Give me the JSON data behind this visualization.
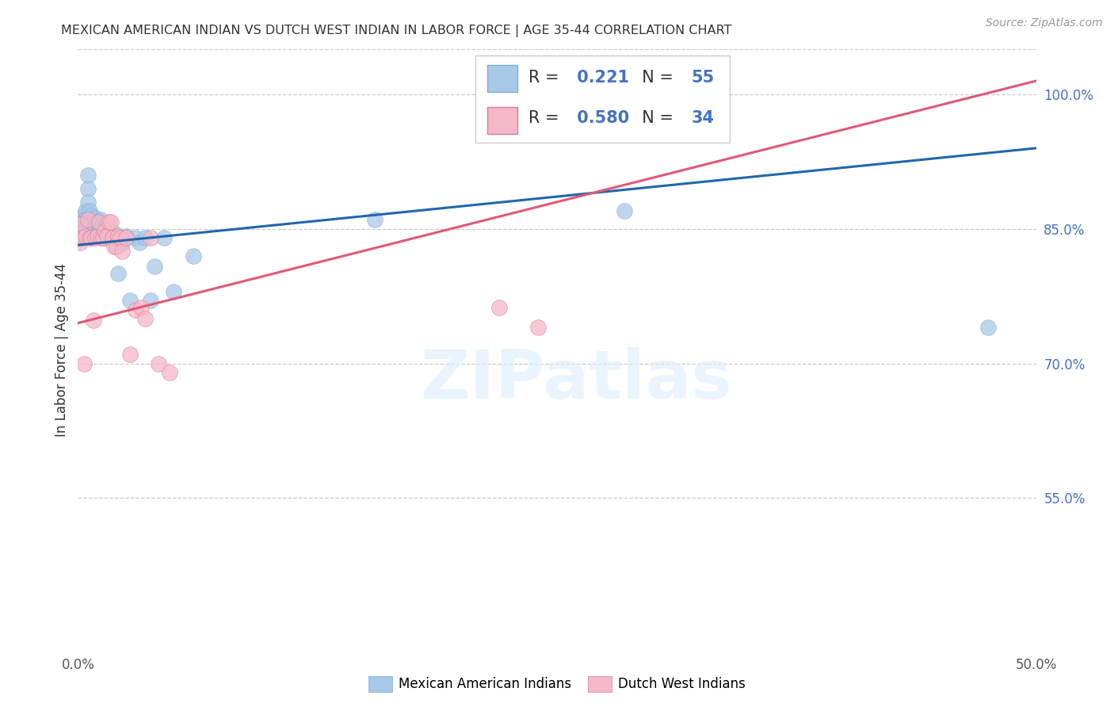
{
  "title": "MEXICAN AMERICAN INDIAN VS DUTCH WEST INDIAN IN LABOR FORCE | AGE 35-44 CORRELATION CHART",
  "source": "Source: ZipAtlas.com",
  "ylabel": "In Labor Force | Age 35-44",
  "xlim": [
    0.0,
    0.5
  ],
  "ylim": [
    0.38,
    1.05
  ],
  "xticklabels": [
    "0.0%",
    "",
    "",
    "",
    "",
    "",
    "",
    "",
    "",
    "",
    "50.0%"
  ],
  "xticks": [
    0.0,
    0.05,
    0.1,
    0.15,
    0.2,
    0.25,
    0.3,
    0.35,
    0.4,
    0.45,
    0.5
  ],
  "yticks_right": [
    1.0,
    0.85,
    0.7,
    0.55
  ],
  "ytick_labels_right": [
    "100.0%",
    "85.0%",
    "70.0%",
    "55.0%"
  ],
  "blue_color": "#a8c8e8",
  "blue_color_edge": "#7bafd4",
  "blue_line_color": "#2166ac",
  "pink_color": "#f4b8c8",
  "pink_color_edge": "#e07898",
  "pink_line_color": "#e05878",
  "legend_R_blue": "0.221",
  "legend_N_blue": "55",
  "legend_R_pink": "0.580",
  "legend_N_pink": "34",
  "watermark_text": "ZIPatlas",
  "blue_scatter_x": [
    0.001,
    0.001,
    0.002,
    0.002,
    0.002,
    0.003,
    0.003,
    0.003,
    0.003,
    0.004,
    0.004,
    0.004,
    0.005,
    0.005,
    0.005,
    0.006,
    0.006,
    0.006,
    0.007,
    0.007,
    0.007,
    0.008,
    0.008,
    0.009,
    0.009,
    0.01,
    0.01,
    0.011,
    0.011,
    0.012,
    0.012,
    0.013,
    0.014,
    0.015,
    0.016,
    0.017,
    0.018,
    0.019,
    0.02,
    0.021,
    0.022,
    0.023,
    0.025,
    0.027,
    0.03,
    0.032,
    0.035,
    0.038,
    0.04,
    0.045,
    0.05,
    0.06,
    0.155,
    0.285,
    0.475
  ],
  "blue_scatter_y": [
    0.855,
    0.845,
    0.86,
    0.85,
    0.84,
    0.865,
    0.858,
    0.848,
    0.84,
    0.87,
    0.86,
    0.85,
    0.91,
    0.895,
    0.88,
    0.87,
    0.858,
    0.845,
    0.865,
    0.855,
    0.84,
    0.858,
    0.848,
    0.862,
    0.852,
    0.858,
    0.845,
    0.855,
    0.843,
    0.86,
    0.848,
    0.85,
    0.84,
    0.848,
    0.845,
    0.842,
    0.84,
    0.845,
    0.838,
    0.8,
    0.84,
    0.835,
    0.842,
    0.77,
    0.84,
    0.835,
    0.84,
    0.77,
    0.808,
    0.84,
    0.78,
    0.82,
    0.86,
    0.87,
    0.74
  ],
  "pink_scatter_x": [
    0.001,
    0.001,
    0.002,
    0.003,
    0.004,
    0.005,
    0.006,
    0.007,
    0.008,
    0.009,
    0.01,
    0.011,
    0.012,
    0.013,
    0.014,
    0.015,
    0.016,
    0.017,
    0.018,
    0.019,
    0.02,
    0.021,
    0.022,
    0.023,
    0.025,
    0.027,
    0.03,
    0.033,
    0.035,
    0.038,
    0.042,
    0.048,
    0.22,
    0.24
  ],
  "pink_scatter_y": [
    0.855,
    0.835,
    0.84,
    0.7,
    0.842,
    0.86,
    0.84,
    0.84,
    0.748,
    0.84,
    0.842,
    0.858,
    0.84,
    0.84,
    0.848,
    0.842,
    0.858,
    0.858,
    0.84,
    0.83,
    0.83,
    0.842,
    0.84,
    0.825,
    0.84,
    0.71,
    0.76,
    0.762,
    0.75,
    0.84,
    0.7,
    0.69,
    0.762,
    0.74
  ],
  "blue_line_x": [
    0.0,
    0.5
  ],
  "blue_line_y": [
    0.832,
    0.94
  ],
  "pink_line_x": [
    0.0,
    0.5
  ],
  "pink_line_y": [
    0.745,
    1.015
  ]
}
